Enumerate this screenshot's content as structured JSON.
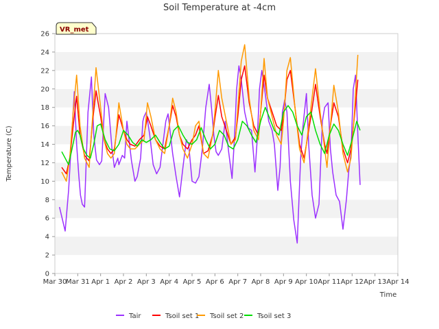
{
  "chart_data": {
    "type": "line",
    "title": "Soil Temperature at -4cm",
    "xlabel": "Time",
    "ylabel": "Temperature (C)",
    "badge": "VR_met",
    "ylim": [
      0,
      26
    ],
    "yticks": [
      0,
      2,
      4,
      6,
      8,
      10,
      12,
      14,
      16,
      18,
      20,
      22,
      24,
      26
    ],
    "xlim": [
      0,
      15
    ],
    "xtick_values": [
      0,
      1,
      2,
      3,
      4,
      5,
      6,
      7,
      8,
      9,
      10,
      11,
      12,
      13,
      14,
      15
    ],
    "xtick_labels": [
      "Mar 30",
      "Mar 31",
      "Apr 1",
      "Apr 2",
      "Apr 3",
      "Apr 4",
      "Apr 5",
      "Apr 6",
      "Apr 7",
      "Apr 8",
      "Apr 9",
      "Apr 10",
      "Apr 11",
      "Apr 12",
      "Apr 13",
      "Apr 14"
    ],
    "grid": "horizontal bands",
    "legend_position": "bottom",
    "series": [
      {
        "name": "Tair",
        "color": "#9b30ff",
        "x": [
          0.2,
          0.45,
          0.6,
          0.75,
          0.85,
          0.95,
          1.05,
          1.12,
          1.2,
          1.3,
          1.45,
          1.6,
          1.7,
          1.82,
          1.95,
          2.0,
          2.05,
          2.2,
          2.35,
          2.5,
          2.6,
          2.75,
          2.8,
          2.95,
          3.05,
          3.15,
          3.35,
          3.5,
          3.6,
          3.75,
          3.85,
          3.9,
          4.0,
          4.15,
          4.3,
          4.45,
          4.6,
          4.75,
          4.85,
          4.95,
          5.05,
          5.15,
          5.3,
          5.45,
          5.6,
          5.75,
          5.85,
          6.0,
          6.15,
          6.3,
          6.45,
          6.6,
          6.75,
          6.85,
          6.95,
          7.05,
          7.15,
          7.3,
          7.45,
          7.6,
          7.75,
          7.85,
          7.95,
          8.05,
          8.15,
          8.3,
          8.45,
          8.6,
          8.75,
          8.85,
          8.95,
          9.05,
          9.2,
          9.35,
          9.5,
          9.6,
          9.75,
          9.85,
          9.95,
          10.05,
          10.15,
          10.3,
          10.45,
          10.6,
          10.75,
          10.85,
          11.0,
          11.1,
          11.25,
          11.4,
          11.55,
          11.7,
          11.8,
          11.95,
          12.05,
          12.15,
          12.3,
          12.45,
          12.6,
          12.75,
          12.85,
          12.95,
          13.05,
          13.15,
          13.25,
          13.35
        ],
        "values": [
          7.2,
          4.6,
          9.0,
          15.5,
          19.7,
          14.0,
          10.5,
          8.5,
          7.5,
          7.2,
          17.5,
          21.3,
          15.0,
          12.3,
          11.8,
          12.0,
          12.2,
          19.5,
          18.0,
          13.5,
          11.5,
          12.5,
          11.8,
          12.8,
          12.5,
          16.5,
          12.2,
          10.0,
          10.5,
          12.5,
          16.5,
          17.0,
          17.5,
          15.0,
          11.8,
          10.8,
          11.5,
          14.5,
          16.5,
          17.3,
          15.2,
          13.0,
          10.5,
          8.3,
          11.5,
          14.5,
          14.0,
          10.0,
          9.8,
          10.5,
          13.5,
          18.0,
          20.5,
          18.0,
          15.0,
          13.2,
          12.8,
          13.5,
          16.5,
          13.2,
          10.3,
          14.5,
          20.0,
          22.5,
          21.0,
          17.5,
          15.8,
          15.5,
          11.0,
          14.5,
          20.0,
          22.0,
          19.5,
          16.5,
          15.5,
          14.0,
          9.0,
          11.5,
          17.5,
          18.8,
          17.5,
          10.0,
          5.8,
          3.3,
          12.5,
          16.0,
          19.5,
          14.0,
          8.5,
          6.0,
          7.5,
          16.5,
          18.0,
          18.5,
          13.5,
          11.0,
          8.5,
          7.8,
          4.8,
          8.0,
          11.0,
          13.0,
          20.0,
          21.5,
          15.0,
          9.6
        ]
      },
      {
        "name": "Tsoil set 1",
        "color": "#ff0000",
        "x": [
          0.3,
          0.5,
          0.65,
          0.8,
          0.95,
          1.1,
          1.3,
          1.5,
          1.65,
          1.8,
          2.0,
          2.15,
          2.3,
          2.45,
          2.6,
          2.8,
          3.0,
          3.15,
          3.3,
          3.5,
          3.7,
          3.9,
          4.05,
          4.2,
          4.4,
          4.6,
          4.8,
          5.0,
          5.15,
          5.3,
          5.45,
          5.6,
          5.8,
          6.0,
          6.15,
          6.3,
          6.5,
          6.7,
          6.9,
          7.0,
          7.15,
          7.3,
          7.5,
          7.7,
          7.9,
          8.0,
          8.15,
          8.3,
          8.5,
          8.7,
          8.9,
          9.0,
          9.15,
          9.3,
          9.5,
          9.7,
          9.9,
          10.0,
          10.15,
          10.3,
          10.5,
          10.7,
          10.9,
          11.0,
          11.2,
          11.4,
          11.6,
          11.8,
          11.9,
          12.05,
          12.2,
          12.4,
          12.6,
          12.8,
          12.95,
          13.1,
          13.25
        ],
        "values": [
          11.5,
          10.8,
          12.5,
          16.0,
          19.2,
          15.0,
          12.8,
          12.2,
          16.5,
          19.8,
          17.0,
          14.5,
          13.5,
          13.0,
          13.5,
          17.2,
          15.5,
          14.5,
          14.0,
          13.8,
          14.5,
          15.0,
          17.0,
          16.0,
          14.5,
          13.8,
          13.5,
          16.0,
          18.2,
          17.0,
          15.0,
          14.0,
          13.5,
          14.5,
          15.0,
          16.0,
          13.0,
          13.3,
          15.0,
          16.8,
          19.3,
          17.0,
          15.5,
          14.0,
          14.8,
          17.0,
          21.0,
          22.5,
          18.5,
          16.0,
          15.0,
          17.5,
          21.5,
          19.0,
          17.5,
          16.0,
          15.5,
          17.0,
          21.0,
          22.0,
          18.0,
          14.0,
          12.5,
          14.0,
          17.0,
          20.5,
          17.0,
          14.0,
          13.0,
          16.0,
          18.5,
          17.0,
          13.5,
          12.0,
          13.5,
          17.0,
          21.0
        ]
      },
      {
        "name": "Tsoil set 2",
        "color": "#ff9900",
        "x": [
          0.3,
          0.5,
          0.65,
          0.8,
          0.95,
          1.1,
          1.3,
          1.5,
          1.65,
          1.8,
          2.0,
          2.15,
          2.3,
          2.45,
          2.6,
          2.8,
          3.0,
          3.15,
          3.3,
          3.5,
          3.7,
          3.9,
          4.05,
          4.2,
          4.4,
          4.6,
          4.8,
          5.0,
          5.15,
          5.3,
          5.45,
          5.6,
          5.8,
          6.0,
          6.15,
          6.3,
          6.5,
          6.7,
          6.9,
          7.0,
          7.15,
          7.3,
          7.5,
          7.7,
          7.9,
          8.0,
          8.15,
          8.3,
          8.5,
          8.7,
          8.9,
          9.0,
          9.15,
          9.3,
          9.5,
          9.7,
          9.9,
          10.0,
          10.15,
          10.3,
          10.5,
          10.7,
          10.9,
          11.0,
          11.2,
          11.4,
          11.6,
          11.8,
          11.9,
          12.05,
          12.2,
          12.4,
          12.6,
          12.8,
          12.95,
          13.1,
          13.25
        ],
        "values": [
          11.0,
          10.0,
          12.5,
          17.5,
          21.5,
          16.0,
          12.5,
          11.5,
          17.0,
          22.3,
          18.0,
          14.5,
          13.0,
          12.5,
          13.0,
          18.5,
          15.5,
          14.0,
          13.5,
          13.5,
          14.0,
          14.5,
          18.5,
          17.0,
          14.5,
          13.5,
          13.0,
          16.0,
          19.0,
          17.5,
          15.0,
          13.5,
          12.5,
          14.0,
          16.0,
          16.5,
          13.0,
          12.5,
          15.0,
          17.5,
          22.0,
          19.0,
          16.5,
          14.0,
          14.5,
          18.0,
          23.0,
          24.8,
          19.0,
          15.5,
          14.5,
          17.5,
          23.3,
          19.0,
          17.0,
          15.0,
          14.0,
          16.5,
          22.0,
          23.4,
          18.0,
          13.5,
          12.0,
          14.0,
          18.0,
          22.2,
          17.5,
          13.5,
          11.5,
          16.0,
          20.4,
          17.5,
          13.0,
          11.0,
          12.5,
          17.5,
          23.7
        ]
      },
      {
        "name": "Tsoil set 3",
        "color": "#00dd00",
        "x": [
          0.3,
          0.45,
          0.6,
          0.75,
          0.9,
          1.0,
          1.1,
          1.25,
          1.4,
          1.55,
          1.7,
          1.85,
          2.0,
          2.2,
          2.4,
          2.6,
          2.8,
          3.0,
          3.2,
          3.4,
          3.6,
          3.8,
          4.0,
          4.2,
          4.4,
          4.6,
          4.8,
          5.0,
          5.2,
          5.4,
          5.6,
          5.8,
          6.0,
          6.2,
          6.4,
          6.6,
          6.8,
          7.0,
          7.2,
          7.4,
          7.6,
          7.8,
          8.0,
          8.2,
          8.4,
          8.6,
          8.8,
          9.0,
          9.2,
          9.4,
          9.6,
          9.8,
          10.0,
          10.2,
          10.4,
          10.6,
          10.8,
          11.0,
          11.2,
          11.4,
          11.6,
          11.8,
          12.0,
          12.2,
          12.4,
          12.6,
          12.8,
          13.0,
          13.2,
          13.35
        ],
        "values": [
          13.2,
          12.5,
          11.8,
          13.5,
          15.3,
          15.5,
          15.0,
          13.5,
          12.8,
          12.5,
          14.0,
          16.0,
          16.2,
          14.5,
          13.5,
          13.3,
          14.0,
          15.5,
          15.0,
          14.2,
          13.8,
          14.5,
          14.2,
          14.5,
          15.0,
          14.2,
          13.5,
          13.8,
          15.5,
          16.0,
          15.0,
          14.2,
          14.0,
          14.5,
          15.8,
          14.5,
          13.5,
          14.0,
          15.5,
          15.0,
          13.8,
          13.5,
          14.5,
          16.5,
          16.0,
          15.0,
          14.2,
          16.5,
          18.0,
          16.8,
          15.5,
          15.0,
          17.5,
          18.2,
          17.5,
          16.0,
          15.0,
          17.0,
          17.5,
          15.5,
          14.0,
          13.0,
          15.0,
          16.2,
          15.5,
          14.0,
          12.8,
          14.5,
          16.5,
          15.5
        ]
      }
    ]
  }
}
